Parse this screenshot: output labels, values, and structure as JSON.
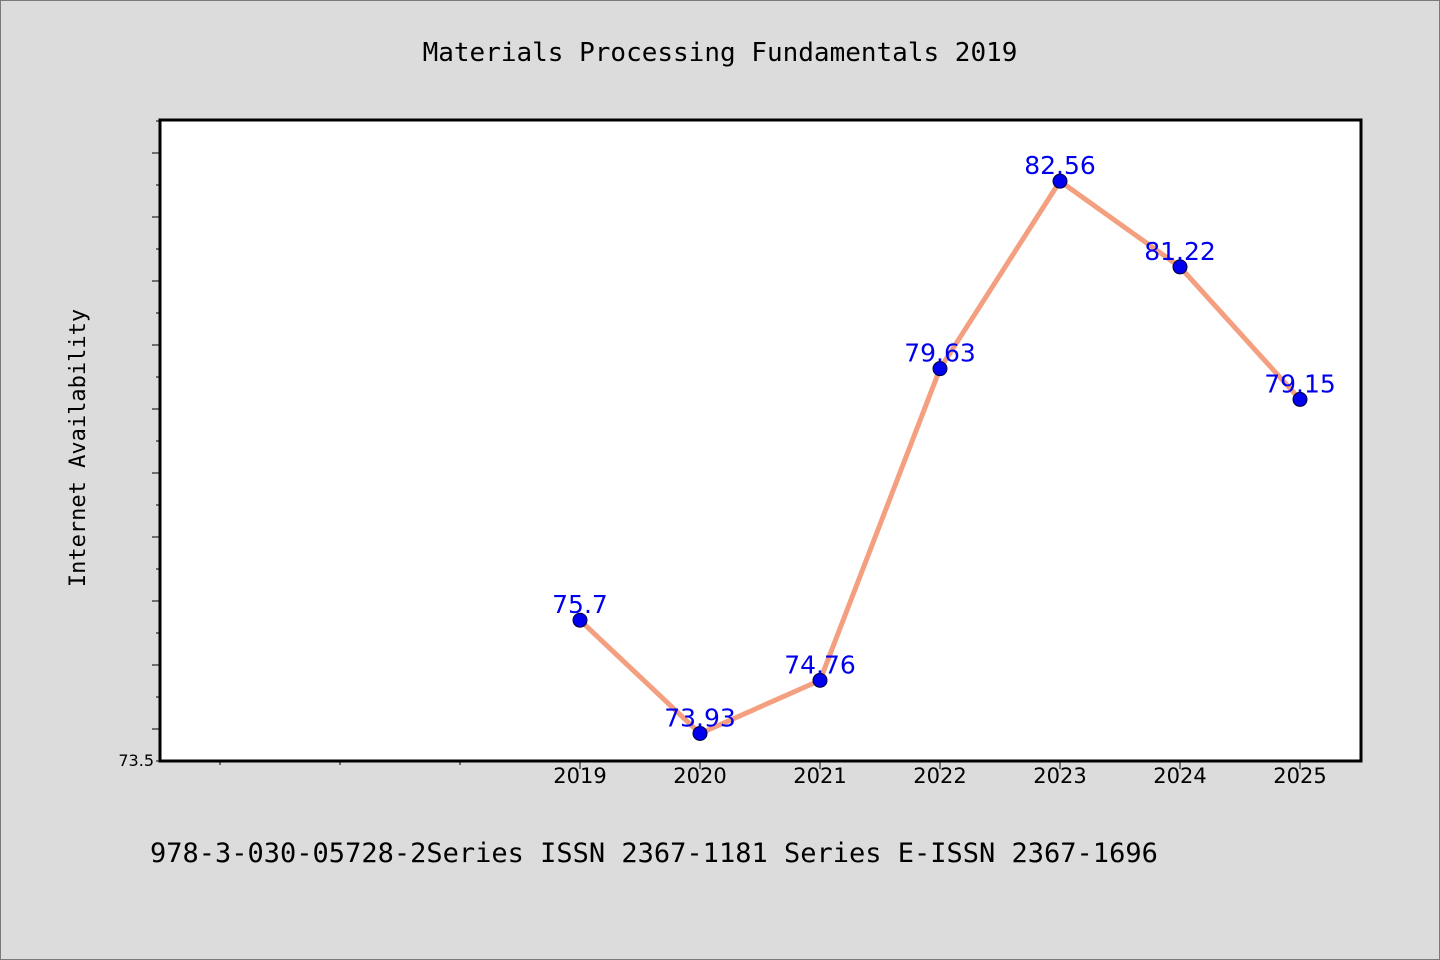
{
  "chart_data": {
    "type": "line",
    "title": "Materials Processing Fundamentals 2019",
    "xlabel": "",
    "ylabel": "Internet Availability",
    "categories": [
      "2019",
      "2020",
      "2021",
      "2022",
      "2023",
      "2024",
      "2025"
    ],
    "values": [
      75.7,
      73.93,
      74.76,
      79.63,
      82.56,
      81.22,
      79.15
    ],
    "value_labels": [
      "75.7",
      "73.93",
      "74.76",
      "79.63",
      "82.56",
      "81.22",
      "79.15"
    ],
    "ytick_labels": [
      "73.5"
    ],
    "ylim": [
      73.5,
      83.5
    ],
    "grid": false,
    "legend": "none",
    "colors": {
      "line": "#f4a080",
      "marker": "#0000ee",
      "data_label": "#0000ee",
      "plot_background": "#ffffff",
      "page_background": "#dcdcdc"
    }
  },
  "footer": "978-3-030-05728-2Series ISSN 2367-1181 Series E-ISSN 2367-1696"
}
